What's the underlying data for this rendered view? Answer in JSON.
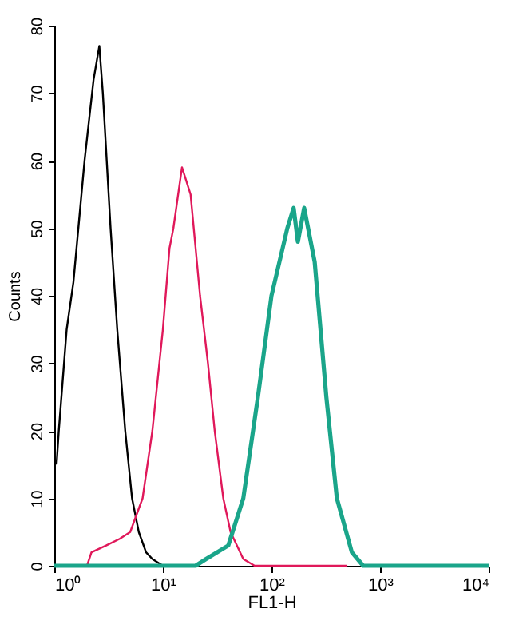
{
  "chart_data": {
    "type": "line",
    "xlabel": "FL1-H",
    "ylabel": "Counts",
    "log": "x",
    "grid": false,
    "marker": "none",
    "line_style": "solid",
    "xlim": [
      1,
      10000
    ],
    "xticks": [
      {
        "value": 1,
        "label": "10⁰"
      },
      {
        "value": 10,
        "label": "10¹"
      },
      {
        "value": 100,
        "label": "10²"
      },
      {
        "value": 1000,
        "label": "10³"
      },
      {
        "value": 10000,
        "label": "10⁴"
      }
    ],
    "ylim": [
      0,
      80
    ],
    "yticks": [
      0,
      10,
      20,
      30,
      40,
      50,
      60,
      70,
      80
    ],
    "series": [
      {
        "color": "#000000",
        "x": [
          1.05,
          1.1,
          1.3,
          1.5,
          1.9,
          2.3,
          2.6,
          2.8,
          3.3,
          3.8,
          4.5,
          5.2,
          6,
          7,
          8,
          10,
          12
        ],
        "values": [
          15,
          20,
          35,
          42,
          60,
          72,
          77,
          70,
          50,
          35,
          20,
          10,
          5,
          2,
          1,
          0,
          0
        ]
      },
      {
        "color": "#e0185a",
        "x": [
          2,
          2.2,
          3,
          4,
          5,
          6.5,
          8,
          10,
          11.5,
          12.5,
          15,
          18,
          22,
          26,
          30,
          36,
          42,
          55,
          70,
          100,
          500
        ],
        "values": [
          0,
          2,
          3,
          4,
          5,
          10,
          20,
          35,
          47,
          50,
          59,
          55,
          40,
          30,
          20,
          10,
          5,
          1,
          0,
          0,
          0
        ]
      },
      {
        "color": "#1aa58a",
        "x": [
          1,
          20,
          25,
          40,
          55,
          75,
          100,
          140,
          160,
          175,
          200,
          250,
          320,
          400,
          550,
          700,
          10000
        ],
        "values": [
          0,
          0,
          1,
          3,
          10,
          25,
          40,
          50,
          53,
          48,
          53,
          45,
          25,
          10,
          2,
          0,
          0
        ]
      }
    ]
  }
}
